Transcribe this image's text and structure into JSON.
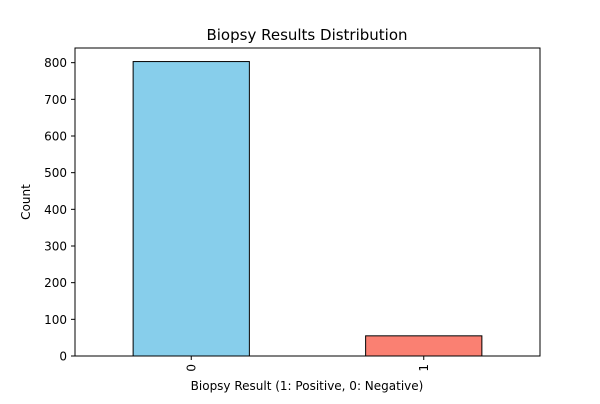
{
  "chart_data": {
    "type": "bar",
    "title": "Biopsy Results Distribution",
    "xlabel": "Biopsy Result (1: Positive, 0: Negative)",
    "ylabel": "Count",
    "categories": [
      "0",
      "1"
    ],
    "values": [
      803,
      55
    ],
    "colors": [
      "#87ceeb",
      "#fa8072"
    ],
    "edge_color": "#000000",
    "ylim": [
      0,
      840
    ],
    "yticks": [
      0,
      100,
      200,
      300,
      400,
      500,
      600,
      700,
      800
    ],
    "grid": false,
    "legend": "none"
  }
}
